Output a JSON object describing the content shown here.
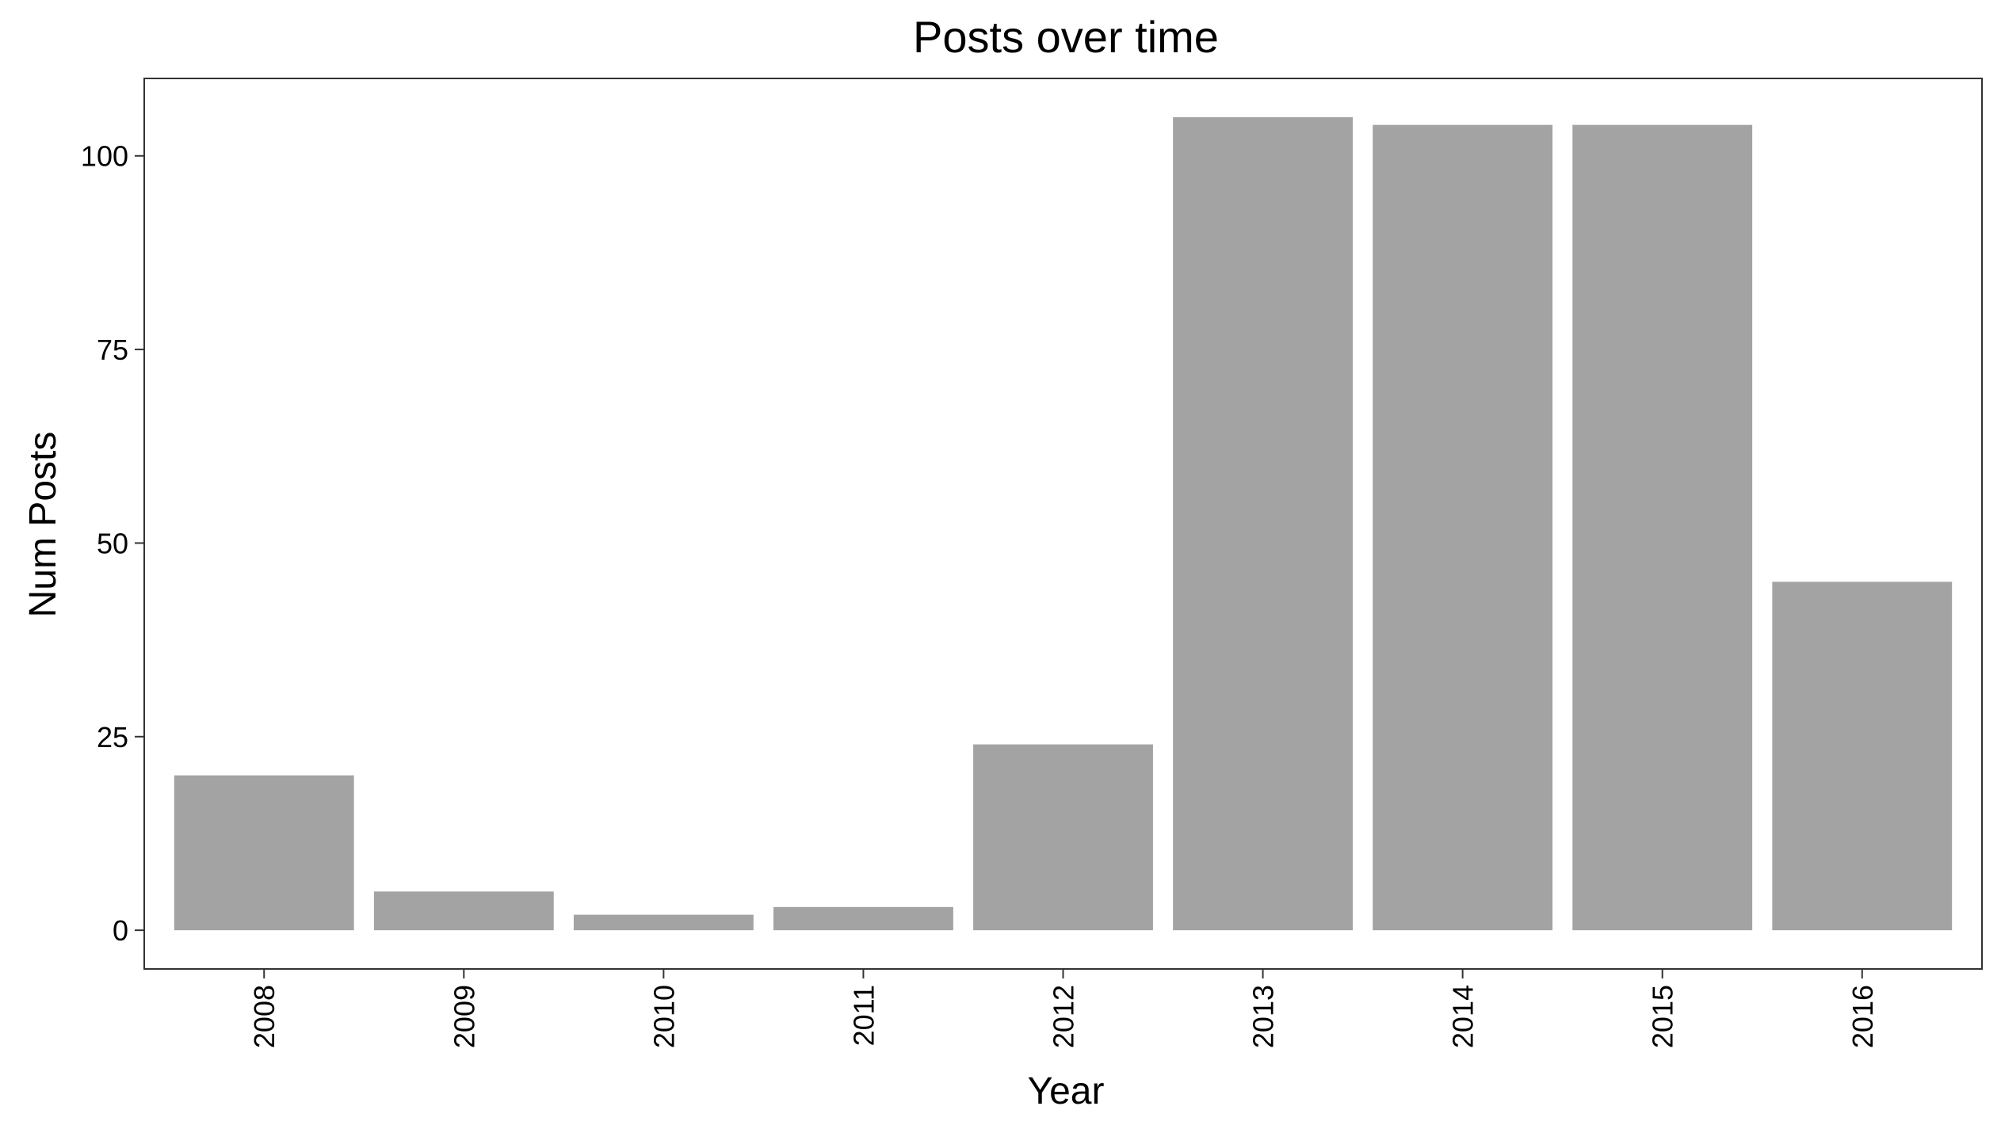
{
  "chart_data": {
    "type": "bar",
    "title": "Posts over time",
    "xlabel": "Year",
    "ylabel": "Num Posts",
    "categories": [
      "2008",
      "2009",
      "2010",
      "2011",
      "2012",
      "2013",
      "2014",
      "2015",
      "2016"
    ],
    "values": [
      20,
      5,
      2,
      3,
      24,
      105,
      104,
      104,
      45
    ],
    "ylim": [
      -5,
      110
    ],
    "yticks": [
      0,
      25,
      50,
      75,
      100
    ],
    "bar_color": "#a3a3a3",
    "panel_border_color": "#333333",
    "grid": false,
    "legend": "none"
  }
}
